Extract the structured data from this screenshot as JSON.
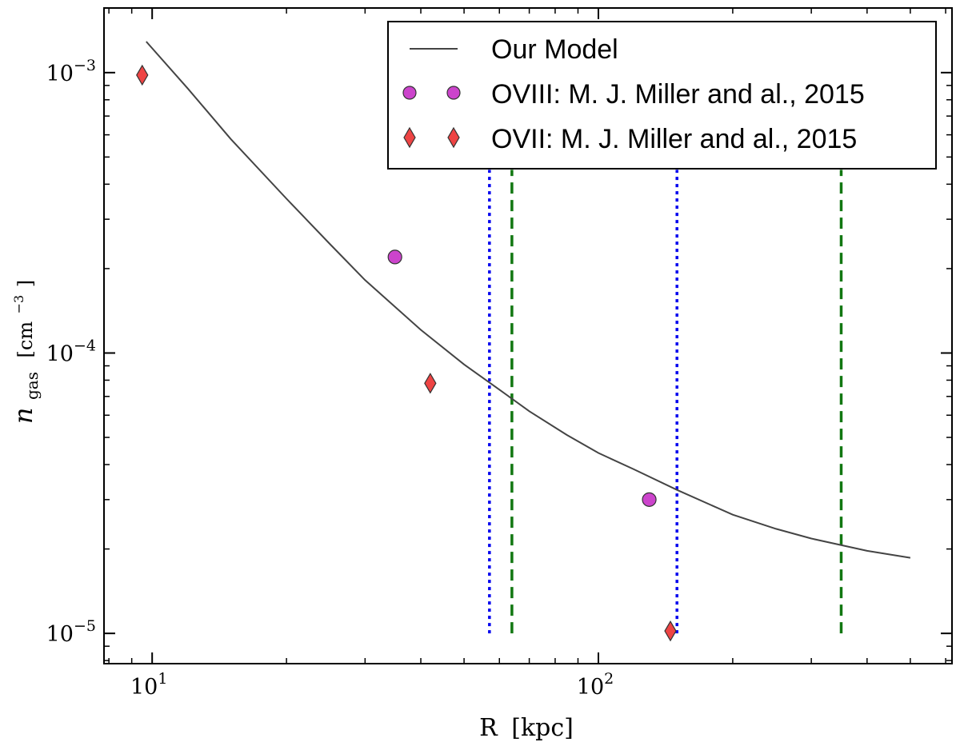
{
  "chart_data": {
    "type": "scatter",
    "x_scale": "log",
    "y_scale": "log",
    "xlim": [
      7.8,
      620
    ],
    "ylim": [
      7.8e-06,
      0.0017
    ],
    "xlabel": {
      "main": "R",
      "unit": "[kpc]"
    },
    "ylabel": {
      "symbol": "n",
      "subscript": "gas",
      "unit_open": "[cm",
      "unit_exp": "−3",
      "unit_close": "]"
    },
    "x_major_ticks": [
      {
        "value": 10,
        "base": "10",
        "exp": "1"
      },
      {
        "value": 100,
        "base": "10",
        "exp": "2"
      }
    ],
    "y_major_ticks": [
      {
        "value": 0.001,
        "base": "10",
        "exp": "−3"
      },
      {
        "value": 0.0001,
        "base": "10",
        "exp": "−4"
      },
      {
        "value": 1e-05,
        "base": "10",
        "exp": "−5"
      }
    ],
    "series": [
      {
        "name": "Our Model",
        "kind": "line",
        "color": "#444444",
        "x": [
          9.7,
          12,
          15,
          20,
          25,
          30,
          40,
          50,
          60,
          70,
          85,
          100,
          120,
          150,
          200,
          250,
          300,
          400,
          500
        ],
        "y": [
          0.00129,
          0.00088,
          0.00058,
          0.000355,
          0.000245,
          0.000182,
          0.000121,
          9.1e-05,
          7.4e-05,
          6.2e-05,
          5.1e-05,
          4.4e-05,
          3.85e-05,
          3.25e-05,
          2.65e-05,
          2.36e-05,
          2.18e-05,
          1.97e-05,
          1.86e-05
        ]
      },
      {
        "name": "OVIII: M. J. Miller and al., 2015",
        "kind": "marker",
        "marker": "circle",
        "color": "#cc44cc",
        "x": [
          35,
          130
        ],
        "y": [
          0.00022,
          3e-05
        ]
      },
      {
        "name": "OVII: M. J. Miller and al., 2015",
        "kind": "marker",
        "marker": "diamond",
        "color": "#ee4444",
        "x": [
          9.5,
          42,
          145
        ],
        "y": [
          0.00098,
          7.8e-05,
          1.02e-05
        ]
      }
    ],
    "vertical_lines": [
      {
        "x": 57,
        "style": "dotted",
        "color": "#0000ee"
      },
      {
        "x": 150,
        "style": "dotted",
        "color": "#0000ee"
      },
      {
        "x": 64,
        "style": "dashed",
        "color": "#117711"
      },
      {
        "x": 350,
        "style": "dashed",
        "color": "#117711"
      }
    ],
    "vertical_lines_range": [
      1e-05,
      0.00045
    ],
    "legend": {
      "position": "top-right"
    }
  }
}
